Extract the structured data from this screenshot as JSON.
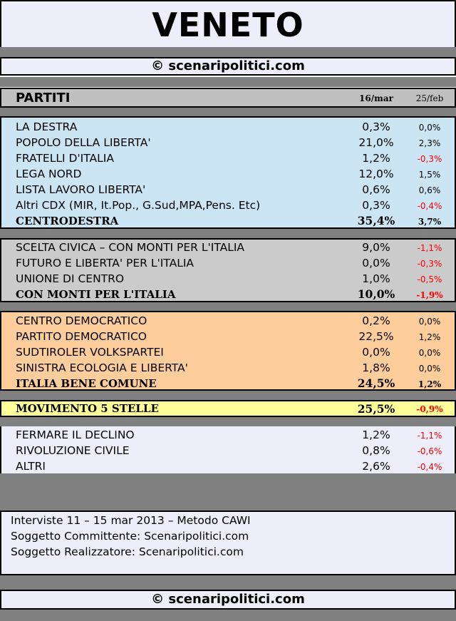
{
  "title": "VENETO",
  "site": "© scenaripolitici.com",
  "header": {
    "partiti": "PARTITI",
    "col1": "16/mar",
    "col2": "25/feb"
  },
  "centrodestra": {
    "rows": [
      {
        "name": "LA DESTRA",
        "value": "0,3%",
        "delta": "0,0%"
      },
      {
        "name": "POPOLO DELLA LIBERTA'",
        "value": "21,0%",
        "delta": "2,3%"
      },
      {
        "name": "FRATELLI D'ITALIA",
        "value": "1,2%",
        "delta": "-0,3%"
      },
      {
        "name": "LEGA NORD",
        "value": "12,0%",
        "delta": "1,5%"
      },
      {
        "name": "LISTA LAVORO LIBERTA'",
        "value": "0,6%",
        "delta": "0,6%"
      },
      {
        "name": "Altri CDX (MIR, It.Pop., G.Sud,MPA,Pens. Etc)",
        "value": "0,3%",
        "delta": "-0,4%"
      }
    ],
    "total": {
      "name": "CENTRODESTRA",
      "value": "35,4%",
      "delta": "3,7%"
    }
  },
  "monti": {
    "rows": [
      {
        "name": "SCELTA CIVICA – CON MONTI PER L'ITALIA",
        "value": "9,0%",
        "delta": "-1,1%"
      },
      {
        "name": "FUTURO E LIBERTA' PER L'ITALIA",
        "value": "0,0%",
        "delta": "-0,3%"
      },
      {
        "name": "UNIONE DI CENTRO",
        "value": "1,0%",
        "delta": "-0,5%"
      }
    ],
    "total": {
      "name": "CON MONTI PER L'ITALIA",
      "value": "10,0%",
      "delta": "-1,9%"
    }
  },
  "centrosinistra": {
    "rows": [
      {
        "name": "CENTRO DEMOCRATICO",
        "value": "0,2%",
        "delta": "0,0%"
      },
      {
        "name": "PARTITO DEMOCRATICO",
        "value": "22,5%",
        "delta": "1,2%"
      },
      {
        "name": "SUDTIROLER VOLKSPARTEI",
        "value": "0,0%",
        "delta": "0,0%"
      },
      {
        "name": "SINISTRA ECOLOGIA E LIBERTA'",
        "value": "1,8%",
        "delta": "0,0%"
      }
    ],
    "total": {
      "name": "ITALIA BENE COMUNE",
      "value": "24,5%",
      "delta": "1,2%"
    }
  },
  "m5s": {
    "name": "MOVIMENTO 5 STELLE",
    "value": "25,5%",
    "delta": "-0,9%"
  },
  "others": {
    "rows": [
      {
        "name": "FERMARE IL DECLINO",
        "value": "1,2%",
        "delta": "-1,1%"
      },
      {
        "name": "RIVOLUZIONE CIVILE",
        "value": "0,8%",
        "delta": "-0,6%"
      },
      {
        "name": "ALTRI",
        "value": "2,6%",
        "delta": "-0,4%"
      }
    ]
  },
  "info": {
    "line1": "Interviste 11 – 15 mar 2013 – Metodo CAWI",
    "line2": "Soggetto Committente: Scenaripolitici.com",
    "line3": "Soggetto Realizzatore: Scenaripolitici.com"
  },
  "colors": {
    "centrodestra_bg": "#cce5f5",
    "monti_bg": "#cbcbcb",
    "centrosinistra_bg": "#fdcd9b",
    "m5s_bg": "#ffff99",
    "others_bg": "#eeeefa",
    "negative": "#ff0000"
  }
}
